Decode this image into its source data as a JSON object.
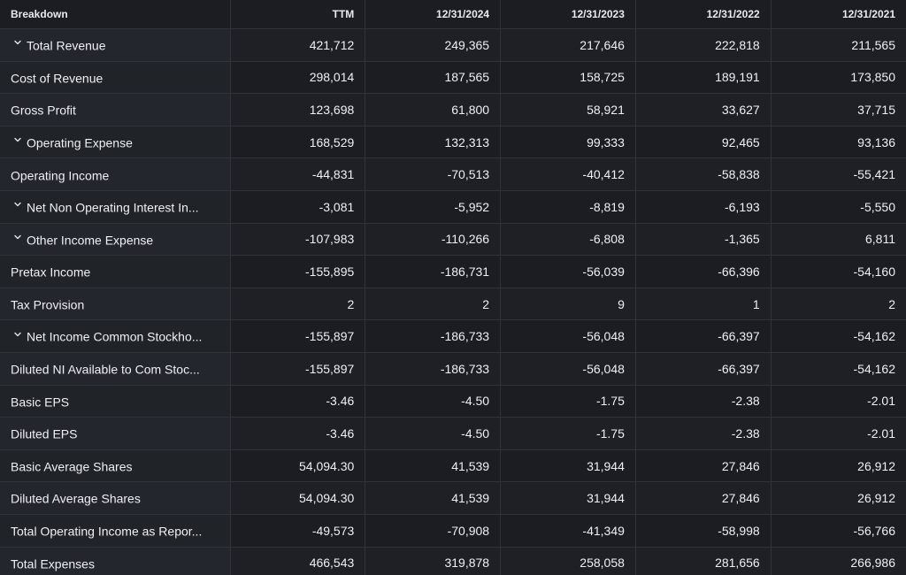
{
  "table": {
    "header": {
      "breakdown": "Breakdown",
      "columns": [
        "TTM",
        "12/31/2024",
        "12/31/2023",
        "12/31/2022",
        "12/31/2021"
      ]
    },
    "rows": [
      {
        "label": "Total Revenue",
        "expandable": true,
        "values": [
          "421,712",
          "249,365",
          "217,646",
          "222,818",
          "211,565"
        ]
      },
      {
        "label": "Cost of Revenue",
        "expandable": false,
        "values": [
          "298,014",
          "187,565",
          "158,725",
          "189,191",
          "173,850"
        ]
      },
      {
        "label": "Gross Profit",
        "expandable": false,
        "values": [
          "123,698",
          "61,800",
          "58,921",
          "33,627",
          "37,715"
        ]
      },
      {
        "label": "Operating Expense",
        "expandable": true,
        "values": [
          "168,529",
          "132,313",
          "99,333",
          "92,465",
          "93,136"
        ]
      },
      {
        "label": "Operating Income",
        "expandable": false,
        "values": [
          "-44,831",
          "-70,513",
          "-40,412",
          "-58,838",
          "-55,421"
        ]
      },
      {
        "label": "Net Non Operating Interest In...",
        "expandable": true,
        "values": [
          "-3,081",
          "-5,952",
          "-8,819",
          "-6,193",
          "-5,550"
        ]
      },
      {
        "label": "Other Income Expense",
        "expandable": true,
        "values": [
          "-107,983",
          "-110,266",
          "-6,808",
          "-1,365",
          "6,811"
        ]
      },
      {
        "label": "Pretax Income",
        "expandable": false,
        "values": [
          "-155,895",
          "-186,731",
          "-56,039",
          "-66,396",
          "-54,160"
        ]
      },
      {
        "label": "Tax Provision",
        "expandable": false,
        "values": [
          "2",
          "2",
          "9",
          "1",
          "2"
        ]
      },
      {
        "label": "Net Income Common Stockho...",
        "expandable": true,
        "values": [
          "-155,897",
          "-186,733",
          "-56,048",
          "-66,397",
          "-54,162"
        ]
      },
      {
        "label": "Diluted NI Available to Com Stoc...",
        "expandable": false,
        "values": [
          "-155,897",
          "-186,733",
          "-56,048",
          "-66,397",
          "-54,162"
        ]
      },
      {
        "label": "Basic EPS",
        "expandable": false,
        "values": [
          "-3.46",
          "-4.50",
          "-1.75",
          "-2.38",
          "-2.01"
        ]
      },
      {
        "label": "Diluted EPS",
        "expandable": false,
        "values": [
          "-3.46",
          "-4.50",
          "-1.75",
          "-2.38",
          "-2.01"
        ]
      },
      {
        "label": "Basic Average Shares",
        "expandable": false,
        "values": [
          "54,094.30",
          "41,539",
          "31,944",
          "27,846",
          "26,912"
        ]
      },
      {
        "label": "Diluted Average Shares",
        "expandable": false,
        "values": [
          "54,094.30",
          "41,539",
          "31,944",
          "27,846",
          "26,912"
        ]
      },
      {
        "label": "Total Operating Income as Repor...",
        "expandable": false,
        "values": [
          "-49,573",
          "-70,908",
          "-41,349",
          "-58,998",
          "-56,766"
        ]
      },
      {
        "label": "Total Expenses",
        "expandable": false,
        "values": [
          "466,543",
          "319,878",
          "258,058",
          "281,656",
          "266,986"
        ]
      }
    ],
    "icons": {
      "expand": "chevron-down-icon"
    },
    "colors": {
      "background": "#1b1d22",
      "grid": "#30333a",
      "text": "#eef0f3"
    }
  }
}
